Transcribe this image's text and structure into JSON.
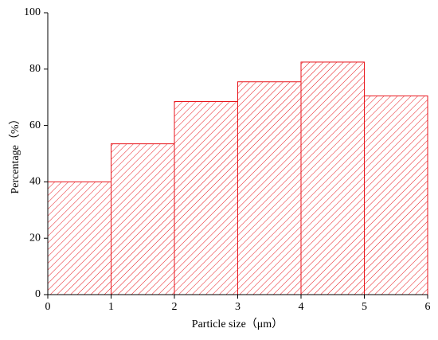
{
  "chart_data": {
    "type": "histogram",
    "x_label": "Particle size（μm）",
    "y_label": "Percentage（%）",
    "bins": [
      0,
      1,
      2,
      3,
      4,
      5,
      6
    ],
    "values": [
      40,
      53.5,
      68.5,
      75.5,
      82.5,
      70.5
    ],
    "color": "#e8161c",
    "hatch": true,
    "xlim": [
      0,
      6
    ],
    "xticks": [
      0,
      1,
      2,
      3,
      4,
      5,
      6
    ],
    "ylim": [
      0,
      100
    ],
    "yticks": [
      0,
      20,
      40,
      60,
      80,
      100
    ],
    "grid": false
  }
}
